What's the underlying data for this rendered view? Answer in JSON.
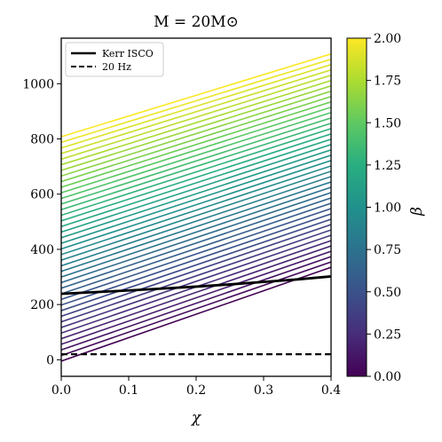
{
  "chart_data": {
    "type": "line",
    "title": "M = 20M⊙",
    "xlabel": "χ",
    "ylabel": "",
    "xlim": [
      0.0,
      0.4
    ],
    "ylim": [
      -60,
      1165
    ],
    "xticks": [
      "0.0",
      "0.1",
      "0.2",
      "0.3",
      "0.4"
    ],
    "yticks": [
      "0",
      "200",
      "400",
      "600",
      "800",
      "1000"
    ],
    "grid": false,
    "legend": {
      "placement": "top-left",
      "entries": [
        {
          "label": "Kerr ISCO",
          "style": "solid",
          "color": "#000000"
        },
        {
          "label": "20 Hz",
          "style": "dashed",
          "color": "#000000"
        }
      ]
    },
    "colorbar": {
      "label": "β",
      "range": [
        0.0,
        2.0
      ],
      "ticks": [
        "0.00",
        "0.25",
        "0.50",
        "0.75",
        "1.00",
        "1.25",
        "1.50",
        "1.75",
        "2.00"
      ],
      "colormap": "viridis"
    },
    "family": {
      "parameter": "β",
      "beta_min": 0.0,
      "beta_max": 2.0,
      "count": 41,
      "x": [
        0.0,
        0.4
      ],
      "y_at_beta0": [
        -5,
        335
      ],
      "y_at_beta2": [
        808,
        1108
      ]
    },
    "series": [
      {
        "name": "Kerr ISCO",
        "x": [
          0.0,
          0.05,
          0.1,
          0.15,
          0.2,
          0.25,
          0.3,
          0.35,
          0.4
        ],
        "y": [
          239,
          245,
          251,
          258,
          265,
          273,
          282,
          291,
          302
        ]
      },
      {
        "name": "20 Hz",
        "x": [
          0.0,
          0.4
        ],
        "y": [
          20,
          20
        ]
      }
    ]
  }
}
